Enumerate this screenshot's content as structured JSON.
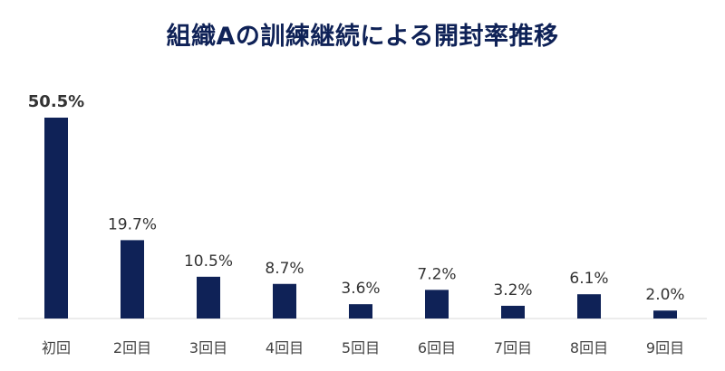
{
  "chart_data": {
    "type": "bar",
    "title": "組織Aの訓練継続による開封率推移",
    "categories": [
      "初回",
      "2回目",
      "3回目",
      "4回目",
      "5回目",
      "6回目",
      "7回目",
      "8回目",
      "9回目"
    ],
    "values": [
      50.5,
      19.7,
      10.5,
      8.7,
      3.6,
      7.2,
      3.2,
      6.1,
      2.0
    ],
    "value_labels": [
      "50.5%",
      "19.7%",
      "10.5%",
      "8.7%",
      "3.6%",
      "7.2%",
      "3.2%",
      "6.1%",
      "2.0%"
    ],
    "unit": "%",
    "bar_color": "#0f2257",
    "ylim": [
      0,
      50.5
    ],
    "grid": false,
    "legend": "none"
  }
}
